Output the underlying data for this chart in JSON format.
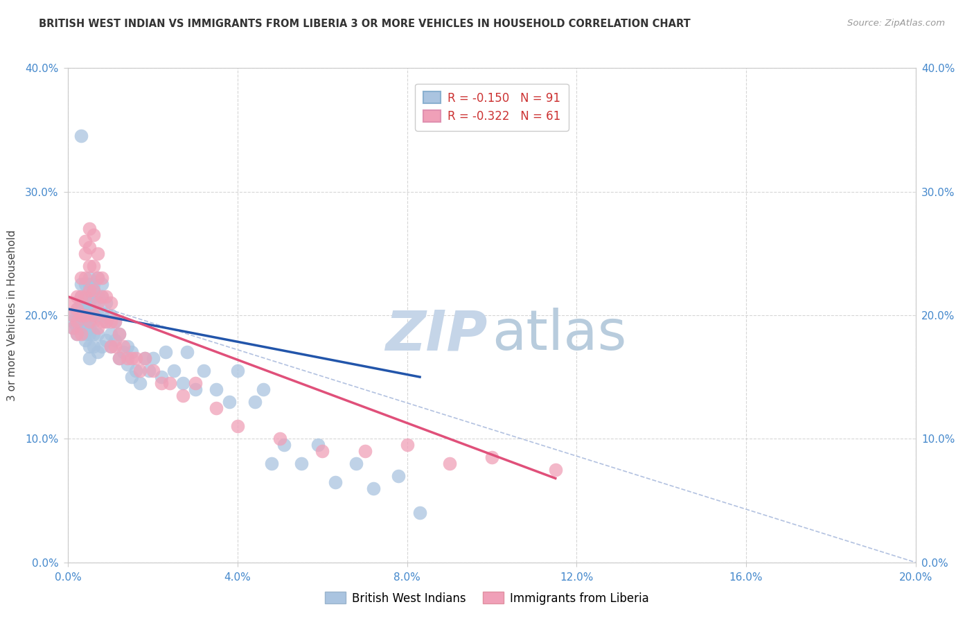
{
  "title": "BRITISH WEST INDIAN VS IMMIGRANTS FROM LIBERIA 3 OR MORE VEHICLES IN HOUSEHOLD CORRELATION CHART",
  "source": "Source: ZipAtlas.com",
  "ylabel": "3 or more Vehicles in Household",
  "xlim": [
    0.0,
    0.2
  ],
  "ylim": [
    0.0,
    0.4
  ],
  "xticks": [
    0.0,
    0.04,
    0.08,
    0.12,
    0.16,
    0.2
  ],
  "yticks": [
    0.0,
    0.1,
    0.2,
    0.3,
    0.4
  ],
  "xtick_labels": [
    "0.0%",
    "4.0%",
    "8.0%",
    "12.0%",
    "16.0%",
    "20.0%"
  ],
  "ytick_labels": [
    "0.0%",
    "10.0%",
    "20.0%",
    "30.0%",
    "40.0%"
  ],
  "legend1_label": "R = -0.150   N = 91",
  "legend2_label": "R = -0.322   N = 61",
  "legend_group1": "British West Indians",
  "legend_group2": "Immigrants from Liberia",
  "blue_color": "#aac4e0",
  "blue_line_color": "#2255aa",
  "pink_color": "#f0a0b8",
  "pink_line_color": "#e0507a",
  "dashed_color": "#aabbdd",
  "watermark_zip_color": "#c5d5e8",
  "watermark_atlas_color": "#b8ccdd",
  "blue_scatter_x": [
    0.001,
    0.001,
    0.001,
    0.002,
    0.002,
    0.002,
    0.002,
    0.002,
    0.003,
    0.003,
    0.003,
    0.003,
    0.003,
    0.003,
    0.003,
    0.004,
    0.004,
    0.004,
    0.004,
    0.004,
    0.004,
    0.004,
    0.004,
    0.004,
    0.005,
    0.005,
    0.005,
    0.005,
    0.005,
    0.005,
    0.005,
    0.005,
    0.005,
    0.005,
    0.006,
    0.006,
    0.006,
    0.006,
    0.006,
    0.006,
    0.006,
    0.007,
    0.007,
    0.007,
    0.007,
    0.007,
    0.008,
    0.008,
    0.008,
    0.008,
    0.009,
    0.009,
    0.009,
    0.01,
    0.01,
    0.01,
    0.011,
    0.011,
    0.012,
    0.012,
    0.013,
    0.014,
    0.014,
    0.015,
    0.015,
    0.016,
    0.017,
    0.018,
    0.019,
    0.02,
    0.022,
    0.023,
    0.025,
    0.027,
    0.028,
    0.03,
    0.032,
    0.035,
    0.038,
    0.04,
    0.044,
    0.046,
    0.048,
    0.051,
    0.055,
    0.059,
    0.063,
    0.068,
    0.072,
    0.078,
    0.083
  ],
  "blue_scatter_y": [
    0.2,
    0.195,
    0.19,
    0.205,
    0.2,
    0.195,
    0.19,
    0.185,
    0.225,
    0.215,
    0.21,
    0.2,
    0.195,
    0.19,
    0.345,
    0.225,
    0.215,
    0.21,
    0.205,
    0.2,
    0.195,
    0.19,
    0.185,
    0.18,
    0.23,
    0.225,
    0.215,
    0.21,
    0.205,
    0.2,
    0.19,
    0.185,
    0.175,
    0.165,
    0.225,
    0.22,
    0.21,
    0.2,
    0.195,
    0.185,
    0.175,
    0.23,
    0.215,
    0.2,
    0.185,
    0.17,
    0.225,
    0.215,
    0.2,
    0.175,
    0.21,
    0.195,
    0.18,
    0.2,
    0.185,
    0.175,
    0.195,
    0.18,
    0.185,
    0.165,
    0.17,
    0.175,
    0.16,
    0.17,
    0.15,
    0.155,
    0.145,
    0.165,
    0.155,
    0.165,
    0.15,
    0.17,
    0.155,
    0.145,
    0.17,
    0.14,
    0.155,
    0.14,
    0.13,
    0.155,
    0.13,
    0.14,
    0.08,
    0.095,
    0.08,
    0.095,
    0.065,
    0.08,
    0.06,
    0.07,
    0.04
  ],
  "pink_scatter_x": [
    0.001,
    0.001,
    0.001,
    0.002,
    0.002,
    0.002,
    0.002,
    0.003,
    0.003,
    0.003,
    0.003,
    0.004,
    0.004,
    0.004,
    0.004,
    0.004,
    0.005,
    0.005,
    0.005,
    0.005,
    0.005,
    0.006,
    0.006,
    0.006,
    0.006,
    0.007,
    0.007,
    0.007,
    0.007,
    0.008,
    0.008,
    0.008,
    0.009,
    0.009,
    0.01,
    0.01,
    0.01,
    0.011,
    0.011,
    0.012,
    0.012,
    0.013,
    0.014,
    0.015,
    0.016,
    0.017,
    0.018,
    0.02,
    0.022,
    0.024,
    0.027,
    0.03,
    0.035,
    0.04,
    0.05,
    0.06,
    0.07,
    0.08,
    0.09,
    0.1,
    0.115
  ],
  "pink_scatter_y": [
    0.21,
    0.2,
    0.19,
    0.215,
    0.205,
    0.195,
    0.185,
    0.23,
    0.215,
    0.2,
    0.185,
    0.26,
    0.25,
    0.23,
    0.215,
    0.2,
    0.27,
    0.255,
    0.24,
    0.22,
    0.195,
    0.265,
    0.24,
    0.22,
    0.2,
    0.25,
    0.23,
    0.21,
    0.19,
    0.23,
    0.215,
    0.195,
    0.215,
    0.195,
    0.21,
    0.195,
    0.175,
    0.195,
    0.175,
    0.185,
    0.165,
    0.175,
    0.165,
    0.165,
    0.165,
    0.155,
    0.165,
    0.155,
    0.145,
    0.145,
    0.135,
    0.145,
    0.125,
    0.11,
    0.1,
    0.09,
    0.09,
    0.095,
    0.08,
    0.085,
    0.075
  ],
  "blue_line_x0": 0.0,
  "blue_line_x1": 0.083,
  "blue_line_y0": 0.205,
  "blue_line_y1": 0.15,
  "pink_line_x0": 0.0,
  "pink_line_x1": 0.115,
  "pink_line_y0": 0.215,
  "pink_line_y1": 0.068,
  "dash_line_x0": 0.0,
  "dash_line_x1": 0.2,
  "dash_line_y0": 0.215,
  "dash_line_y1": 0.0
}
